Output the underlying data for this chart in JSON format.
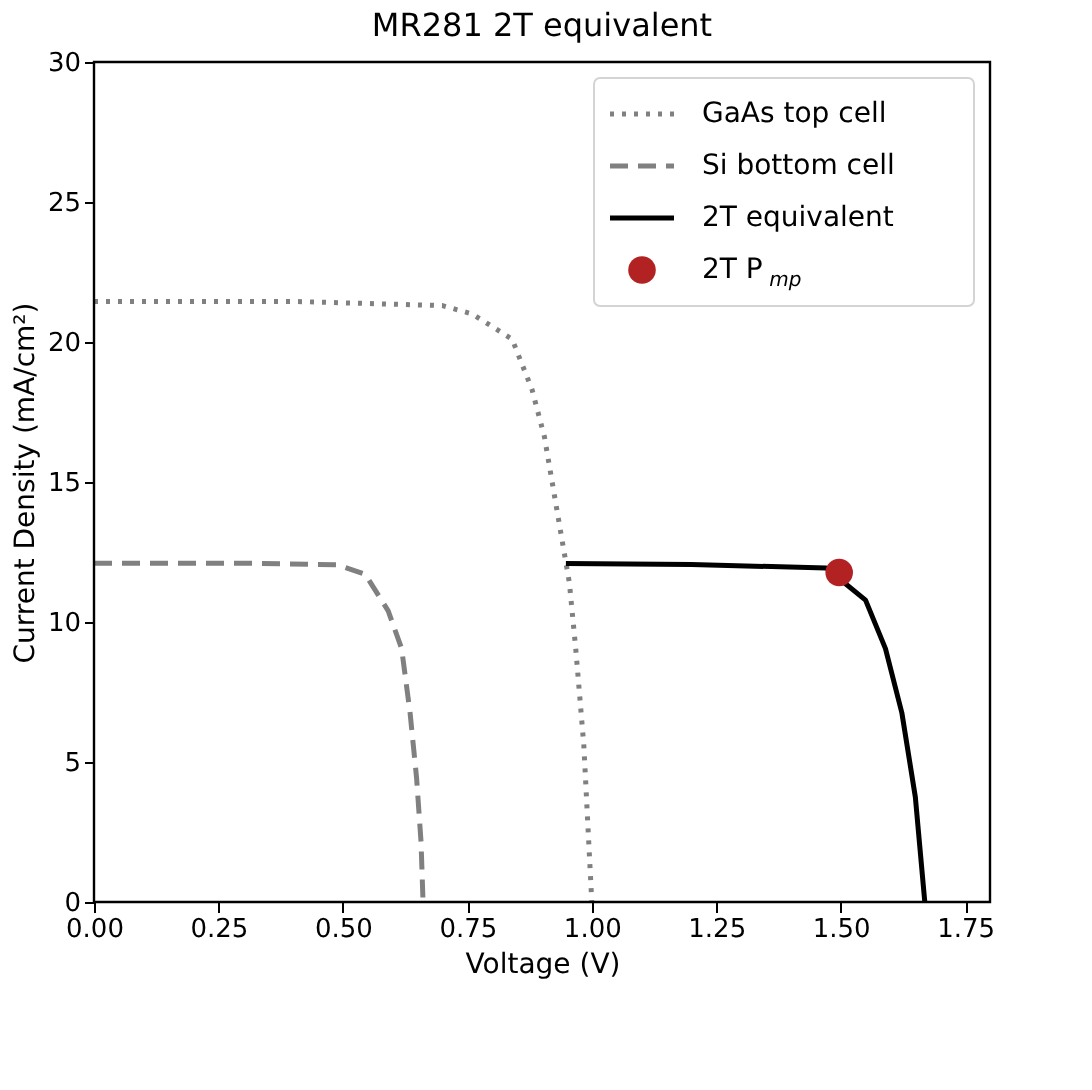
{
  "chart_data": {
    "type": "line",
    "title": "MR281 2T equivalent",
    "xlabel": "Voltage (V)",
    "ylabel": "Current Density (mA/cm²)",
    "xlim": [
      0,
      1.8
    ],
    "ylim": [
      0,
      30
    ],
    "xticks": [
      {
        "value": 0,
        "label": "0.00"
      },
      {
        "value": 0.25,
        "label": "0.25"
      },
      {
        "value": 0.5,
        "label": "0.50"
      },
      {
        "value": 0.75,
        "label": "0.75"
      },
      {
        "value": 1,
        "label": "1.00"
      },
      {
        "value": 1.25,
        "label": "1.25"
      },
      {
        "value": 1.5,
        "label": "1.50"
      },
      {
        "value": 1.75,
        "label": "1.75"
      }
    ],
    "yticks": [
      0,
      5,
      10,
      15,
      20,
      25,
      30
    ],
    "grid": false,
    "legend": "top right",
    "series": [
      {
        "name": "GaAs top cell",
        "color": "#808080",
        "line_style": "dotted",
        "x": [
          0,
          0.4,
          0.7,
          0.76,
          0.84,
          0.88,
          0.905,
          0.929,
          0.955,
          0.968,
          0.984,
          1.0
        ],
        "values": [
          21.45,
          21.45,
          21.3,
          21.0,
          20.1,
          18.3,
          16.6,
          14.1,
          11.4,
          9.0,
          5.6,
          0
        ]
      },
      {
        "name": "Si bottom cell",
        "color": "#808080",
        "line_style": "dashed",
        "x": [
          0,
          0.3,
          0.49,
          0.545,
          0.591,
          0.618,
          0.635,
          0.648,
          0.657,
          0.661
        ],
        "values": [
          12.1,
          12.1,
          12.04,
          11.7,
          10.4,
          9.05,
          6.75,
          4.44,
          2.14,
          0
        ]
      },
      {
        "name": "2T equivalent",
        "color": "#000000",
        "line_style": "solid",
        "x": [
          0.948,
          1.2,
          1.471,
          1.55,
          1.59,
          1.623,
          1.65,
          1.669
        ],
        "values": [
          12.09,
          12.05,
          11.93,
          10.78,
          9.05,
          6.75,
          3.75,
          0
        ]
      },
      {
        "name": "2T P$_{mp}$",
        "type": "scatter",
        "marker": "circle",
        "color": "#b22222",
        "x": [
          1.497
        ],
        "values": [
          11.77
        ]
      }
    ]
  }
}
